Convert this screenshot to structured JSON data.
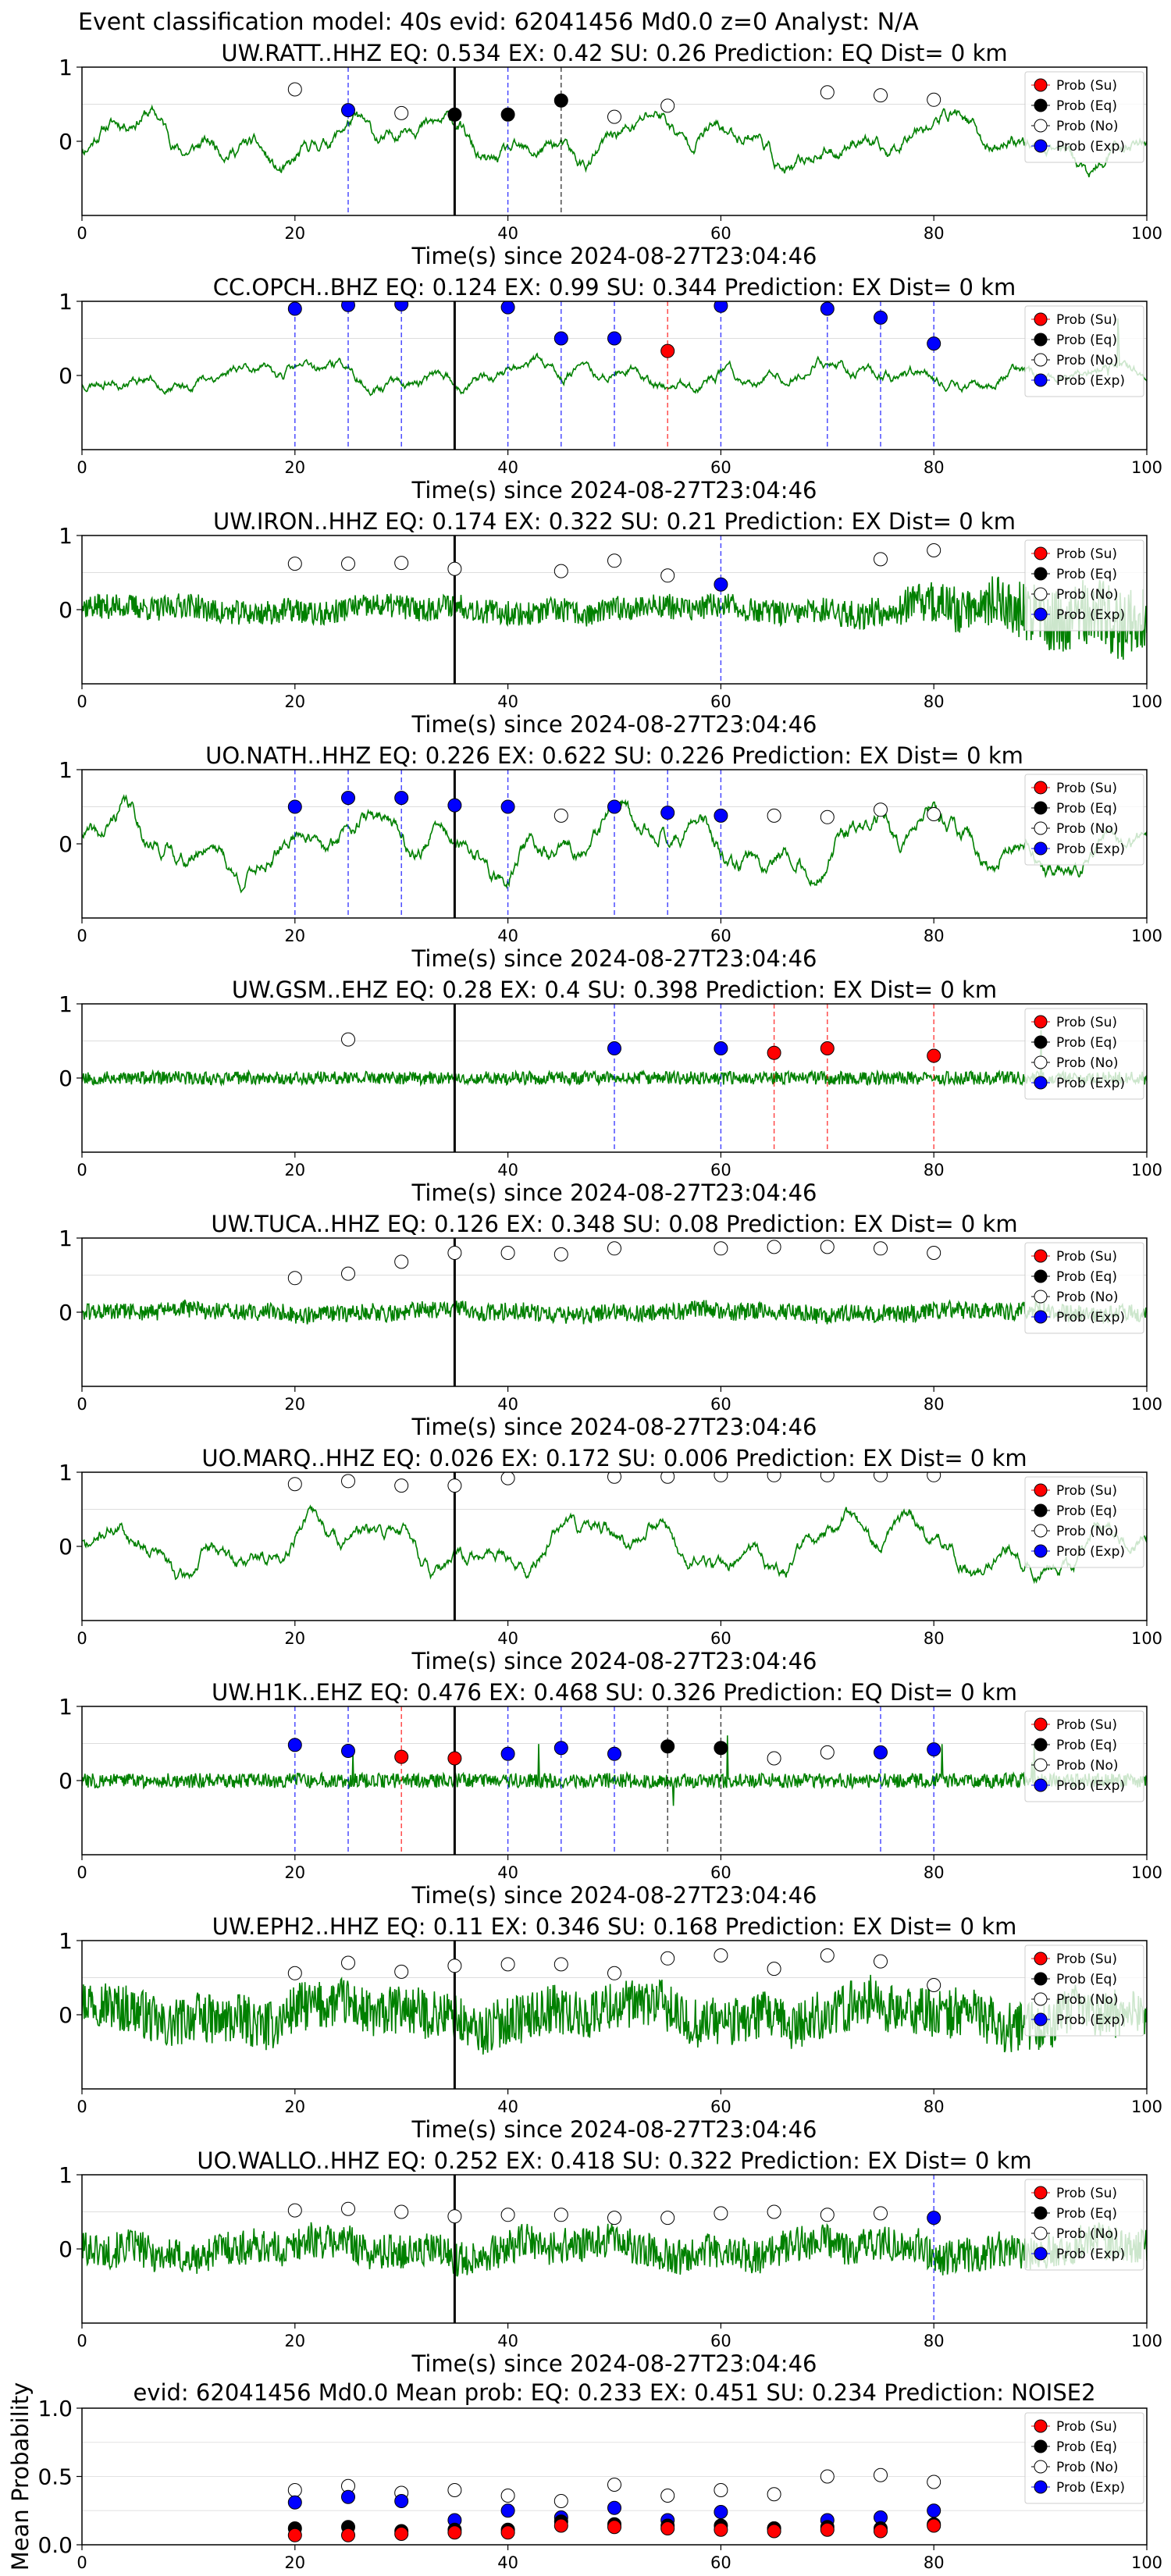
{
  "figure": {
    "suptitle": "Event classification model: 40s evid: 62041456 Md0.0 z=0 Analyst: N/A",
    "xlabel": "Time(s) since 2024-08-27T23:04:46",
    "xticks": [
      "0",
      "20",
      "40",
      "60",
      "80",
      "100"
    ],
    "yticks_station": [
      "0",
      "1"
    ],
    "arrival_time": 35,
    "legend": [
      {
        "key": "su",
        "label": "Prob (Su)",
        "color": "#ff0000"
      },
      {
        "key": "eq",
        "label": "Prob (Eq)",
        "color": "#000000"
      },
      {
        "key": "no",
        "label": "Prob (No)",
        "color": "#ffffff"
      },
      {
        "key": "exp",
        "label": "Prob (Exp)",
        "color": "#0000ff"
      }
    ],
    "colors": {
      "trace": "#008000",
      "su": "#ff0000",
      "eq": "#000000",
      "no": "#ffffff",
      "exp": "#0000ff",
      "exp_line": "#0000ff",
      "su_line": "#ff0000",
      "eq_line": "#000000"
    }
  },
  "chart_data": [
    {
      "type": "line",
      "station": "UW.RATT..HHZ",
      "title": "UW.RATT..HHZ   EQ: 0.534  EX: 0.42  SU: 0.26   Prediction: EQ    Dist= 0 km",
      "xlim": [
        0,
        100
      ],
      "ylim": [
        -1,
        1
      ],
      "trace": {
        "style": "smooth",
        "amp": 0.42,
        "seed": 11
      },
      "points": [
        {
          "t": 20,
          "no": 0.7
        },
        {
          "t": 25,
          "exp": 0.42
        },
        {
          "t": 30,
          "no": 0.38
        },
        {
          "t": 35,
          "eq": 0.36
        },
        {
          "t": 40,
          "eq": 0.36
        },
        {
          "t": 45,
          "eq": 0.55
        },
        {
          "t": 50,
          "no": 0.33
        },
        {
          "t": 55,
          "no": 0.48
        },
        {
          "t": 70,
          "no": 0.66
        },
        {
          "t": 75,
          "no": 0.62
        },
        {
          "t": 80,
          "no": 0.56
        }
      ],
      "vlines": [
        {
          "t": 25,
          "c": "exp"
        },
        {
          "t": 40,
          "c": "exp"
        },
        {
          "t": 45,
          "c": "eq"
        }
      ]
    },
    {
      "type": "line",
      "station": "CC.OPCH..BHZ",
      "title": "CC.OPCH..BHZ   EQ: 0.124  EX: 0.99  SU: 0.344   Prediction: EX    Dist= 0 km",
      "xlim": [
        0,
        100
      ],
      "ylim": [
        -1,
        1
      ],
      "trace": {
        "style": "smooth-spiky",
        "amp": 0.25,
        "seed": 23
      },
      "points": [
        {
          "t": 20,
          "exp": 0.9
        },
        {
          "t": 25,
          "exp": 0.95
        },
        {
          "t": 30,
          "exp": 0.96
        },
        {
          "t": 40,
          "exp": 0.92
        },
        {
          "t": 45,
          "exp": 0.5
        },
        {
          "t": 50,
          "exp": 0.5
        },
        {
          "t": 55,
          "su": 0.33
        },
        {
          "t": 60,
          "exp": 0.94
        },
        {
          "t": 70,
          "exp": 0.9
        },
        {
          "t": 75,
          "exp": 0.78
        },
        {
          "t": 80,
          "exp": 0.43
        }
      ],
      "vlines": [
        {
          "t": 20,
          "c": "exp"
        },
        {
          "t": 25,
          "c": "exp"
        },
        {
          "t": 30,
          "c": "exp"
        },
        {
          "t": 40,
          "c": "exp"
        },
        {
          "t": 45,
          "c": "exp"
        },
        {
          "t": 50,
          "c": "exp"
        },
        {
          "t": 55,
          "c": "su"
        },
        {
          "t": 60,
          "c": "exp"
        },
        {
          "t": 70,
          "c": "exp"
        },
        {
          "t": 75,
          "c": "exp"
        },
        {
          "t": 80,
          "c": "exp"
        }
      ]
    },
    {
      "type": "line",
      "station": "UW.IRON..HHZ",
      "title": "UW.IRON..HHZ   EQ: 0.174  EX: 0.322  SU: 0.21   Prediction: EX    Dist= 0 km",
      "xlim": [
        0,
        100
      ],
      "ylim": [
        -1,
        1
      ],
      "trace": {
        "style": "noisy-growing",
        "amp": 0.3,
        "seed": 37
      },
      "points": [
        {
          "t": 20,
          "no": 0.62
        },
        {
          "t": 25,
          "no": 0.62
        },
        {
          "t": 30,
          "no": 0.63
        },
        {
          "t": 35,
          "no": 0.55
        },
        {
          "t": 45,
          "no": 0.52
        },
        {
          "t": 50,
          "no": 0.66
        },
        {
          "t": 55,
          "no": 0.46
        },
        {
          "t": 60,
          "exp": 0.34
        },
        {
          "t": 75,
          "no": 0.68
        },
        {
          "t": 80,
          "no": 0.8
        }
      ],
      "vlines": [
        {
          "t": 60,
          "c": "exp"
        }
      ]
    },
    {
      "type": "line",
      "station": "UO.NATH..HHZ",
      "title": "UO.NATH..HHZ   EQ: 0.226  EX: 0.622  SU: 0.226   Prediction: EX    Dist= 0 km",
      "xlim": [
        0,
        100
      ],
      "ylim": [
        -1,
        1
      ],
      "trace": {
        "style": "smooth",
        "amp": 0.5,
        "seed": 41
      },
      "points": [
        {
          "t": 20,
          "exp": 0.5
        },
        {
          "t": 25,
          "exp": 0.62
        },
        {
          "t": 30,
          "exp": 0.62
        },
        {
          "t": 35,
          "exp": 0.52
        },
        {
          "t": 40,
          "exp": 0.5
        },
        {
          "t": 45,
          "no": 0.38
        },
        {
          "t": 50,
          "exp": 0.5
        },
        {
          "t": 55,
          "exp": 0.42
        },
        {
          "t": 60,
          "exp": 0.38
        },
        {
          "t": 65,
          "no": 0.38
        },
        {
          "t": 70,
          "no": 0.36
        },
        {
          "t": 75,
          "no": 0.46
        },
        {
          "t": 80,
          "no": 0.4
        }
      ],
      "vlines": [
        {
          "t": 20,
          "c": "exp"
        },
        {
          "t": 25,
          "c": "exp"
        },
        {
          "t": 30,
          "c": "exp"
        },
        {
          "t": 40,
          "c": "exp"
        },
        {
          "t": 50,
          "c": "exp"
        },
        {
          "t": 55,
          "c": "exp"
        },
        {
          "t": 60,
          "c": "exp"
        }
      ]
    },
    {
      "type": "line",
      "station": "UW.GSM..EHZ",
      "title": "UW.GSM..EHZ   EQ: 0.28  EX: 0.4  SU: 0.398   Prediction: EX    Dist= 0 km",
      "xlim": [
        0,
        100
      ],
      "ylim": [
        -1,
        1
      ],
      "trace": {
        "style": "flat-noise",
        "amp": 0.09,
        "seed": 53
      },
      "points": [
        {
          "t": 25,
          "no": 0.52
        },
        {
          "t": 50,
          "exp": 0.4
        },
        {
          "t": 60,
          "exp": 0.4
        },
        {
          "t": 65,
          "su": 0.34
        },
        {
          "t": 70,
          "su": 0.4
        },
        {
          "t": 80,
          "su": 0.3
        }
      ],
      "vlines": [
        {
          "t": 50,
          "c": "exp"
        },
        {
          "t": 60,
          "c": "exp"
        },
        {
          "t": 65,
          "c": "su"
        },
        {
          "t": 70,
          "c": "su"
        },
        {
          "t": 80,
          "c": "su"
        }
      ]
    },
    {
      "type": "line",
      "station": "UW.TUCA..HHZ",
      "title": "UW.TUCA..HHZ   EQ: 0.126  EX: 0.348  SU: 0.08   Prediction: EX    Dist= 0 km",
      "xlim": [
        0,
        100
      ],
      "ylim": [
        -1,
        1
      ],
      "trace": {
        "style": "noise",
        "amp": 0.17,
        "seed": 61
      },
      "points": [
        {
          "t": 20,
          "no": 0.46
        },
        {
          "t": 25,
          "no": 0.52
        },
        {
          "t": 30,
          "no": 0.68
        },
        {
          "t": 35,
          "no": 0.8
        },
        {
          "t": 40,
          "no": 0.8
        },
        {
          "t": 45,
          "no": 0.78
        },
        {
          "t": 50,
          "no": 0.86
        },
        {
          "t": 60,
          "no": 0.86
        },
        {
          "t": 65,
          "no": 0.88
        },
        {
          "t": 70,
          "no": 0.88
        },
        {
          "t": 75,
          "no": 0.86
        },
        {
          "t": 80,
          "no": 0.8
        }
      ],
      "vlines": []
    },
    {
      "type": "line",
      "station": "UO.MARQ..HHZ",
      "title": "UO.MARQ..HHZ   EQ: 0.026  EX: 0.172  SU: 0.006   Prediction: EX    Dist= 0 km",
      "xlim": [
        0,
        100
      ],
      "ylim": [
        -1,
        1
      ],
      "trace": {
        "style": "smooth",
        "amp": 0.45,
        "seed": 71
      },
      "points": [
        {
          "t": 20,
          "no": 0.84
        },
        {
          "t": 25,
          "no": 0.88
        },
        {
          "t": 30,
          "no": 0.82
        },
        {
          "t": 35,
          "no": 0.82
        },
        {
          "t": 40,
          "no": 0.92
        },
        {
          "t": 50,
          "no": 0.94
        },
        {
          "t": 55,
          "no": 0.94
        },
        {
          "t": 60,
          "no": 0.96
        },
        {
          "t": 65,
          "no": 0.96
        },
        {
          "t": 70,
          "no": 0.96
        },
        {
          "t": 75,
          "no": 0.96
        },
        {
          "t": 80,
          "no": 0.96
        }
      ],
      "vlines": []
    },
    {
      "type": "line",
      "station": "UW.H1K..EHZ",
      "title": "UW.H1K..EHZ   EQ: 0.476  EX: 0.468  SU: 0.326   Prediction: EQ    Dist= 0 km",
      "xlim": [
        0,
        100
      ],
      "ylim": [
        -1,
        1
      ],
      "trace": {
        "style": "flat-noise",
        "amp": 0.1,
        "seed": 83
      },
      "points": [
        {
          "t": 20,
          "exp": 0.48
        },
        {
          "t": 25,
          "exp": 0.4
        },
        {
          "t": 30,
          "su": 0.32
        },
        {
          "t": 35,
          "su": 0.3
        },
        {
          "t": 40,
          "exp": 0.36
        },
        {
          "t": 45,
          "exp": 0.44
        },
        {
          "t": 50,
          "exp": 0.36
        },
        {
          "t": 55,
          "eq": 0.46
        },
        {
          "t": 60,
          "eq": 0.44
        },
        {
          "t": 65,
          "no": 0.3
        },
        {
          "t": 70,
          "no": 0.38
        },
        {
          "t": 75,
          "exp": 0.38
        },
        {
          "t": 80,
          "exp": 0.42
        }
      ],
      "vlines": [
        {
          "t": 20,
          "c": "exp"
        },
        {
          "t": 25,
          "c": "exp"
        },
        {
          "t": 30,
          "c": "su"
        },
        {
          "t": 40,
          "c": "exp"
        },
        {
          "t": 45,
          "c": "exp"
        },
        {
          "t": 50,
          "c": "exp"
        },
        {
          "t": 55,
          "c": "eq"
        },
        {
          "t": 60,
          "c": "eq"
        },
        {
          "t": 75,
          "c": "exp"
        },
        {
          "t": 80,
          "c": "exp"
        }
      ]
    },
    {
      "type": "line",
      "station": "UW.EPH2..HHZ",
      "title": "UW.EPH2..HHZ   EQ: 0.11  EX: 0.346  SU: 0.168   Prediction: EX    Dist= 0 km",
      "xlim": [
        0,
        100
      ],
      "ylim": [
        -1,
        1
      ],
      "trace": {
        "style": "dense",
        "amp": 0.42,
        "seed": 97
      },
      "points": [
        {
          "t": 20,
          "no": 0.56
        },
        {
          "t": 25,
          "no": 0.7
        },
        {
          "t": 30,
          "no": 0.58
        },
        {
          "t": 35,
          "no": 0.66
        },
        {
          "t": 40,
          "no": 0.68
        },
        {
          "t": 45,
          "no": 0.68
        },
        {
          "t": 50,
          "no": 0.56
        },
        {
          "t": 55,
          "no": 0.76
        },
        {
          "t": 60,
          "no": 0.8
        },
        {
          "t": 65,
          "no": 0.62
        },
        {
          "t": 70,
          "no": 0.8
        },
        {
          "t": 75,
          "no": 0.72
        },
        {
          "t": 80,
          "no": 0.4
        }
      ],
      "vlines": []
    },
    {
      "type": "line",
      "station": "UO.WALLO..HHZ",
      "title": "UO.WALLO..HHZ   EQ: 0.252  EX: 0.418  SU: 0.322   Prediction: EX    Dist= 0 km",
      "xlim": [
        0,
        100
      ],
      "ylim": [
        -1,
        1
      ],
      "trace": {
        "style": "dense",
        "amp": 0.3,
        "seed": 101
      },
      "points": [
        {
          "t": 20,
          "no": 0.52
        },
        {
          "t": 25,
          "no": 0.54
        },
        {
          "t": 30,
          "no": 0.5
        },
        {
          "t": 35,
          "no": 0.44
        },
        {
          "t": 40,
          "no": 0.46
        },
        {
          "t": 45,
          "no": 0.46
        },
        {
          "t": 50,
          "no": 0.42
        },
        {
          "t": 55,
          "no": 0.42
        },
        {
          "t": 60,
          "no": 0.48
        },
        {
          "t": 65,
          "no": 0.5
        },
        {
          "t": 70,
          "no": 0.46
        },
        {
          "t": 75,
          "no": 0.48
        },
        {
          "t": 80,
          "exp": 0.42
        }
      ],
      "vlines": [
        {
          "t": 80,
          "c": "exp"
        }
      ]
    },
    {
      "type": "scatter",
      "station": "mean",
      "title": "evid: 62041456  Md0.0   Mean prob:   EQ: 0.233  EX: 0.451  SU: 0.234   Prediction: NOISE2",
      "ylabel": "Mean Probability",
      "xlim": [
        0,
        100
      ],
      "ylim": [
        0,
        1
      ],
      "yticks": [
        "0.0",
        "0.5",
        "1.0"
      ],
      "x": [
        20,
        25,
        30,
        35,
        40,
        45,
        50,
        55,
        60,
        65,
        70,
        75,
        80
      ],
      "series": [
        {
          "key": "no",
          "name": "Prob (No)",
          "values": [
            0.4,
            0.43,
            0.38,
            0.4,
            0.36,
            0.32,
            0.44,
            0.36,
            0.4,
            0.37,
            0.5,
            0.51,
            0.46
          ]
        },
        {
          "key": "exp",
          "name": "Prob (Exp)",
          "values": [
            0.31,
            0.35,
            0.32,
            0.18,
            0.25,
            0.2,
            0.27,
            0.18,
            0.24,
            0.12,
            0.18,
            0.2,
            0.25
          ]
        },
        {
          "key": "eq",
          "name": "Prob (Eq)",
          "values": [
            0.12,
            0.13,
            0.1,
            0.11,
            0.11,
            0.17,
            0.15,
            0.14,
            0.14,
            0.12,
            0.13,
            0.12,
            0.15
          ]
        },
        {
          "key": "su",
          "name": "Prob (Su)",
          "values": [
            0.07,
            0.07,
            0.08,
            0.09,
            0.09,
            0.14,
            0.13,
            0.12,
            0.11,
            0.1,
            0.11,
            0.1,
            0.14
          ]
        }
      ]
    }
  ]
}
